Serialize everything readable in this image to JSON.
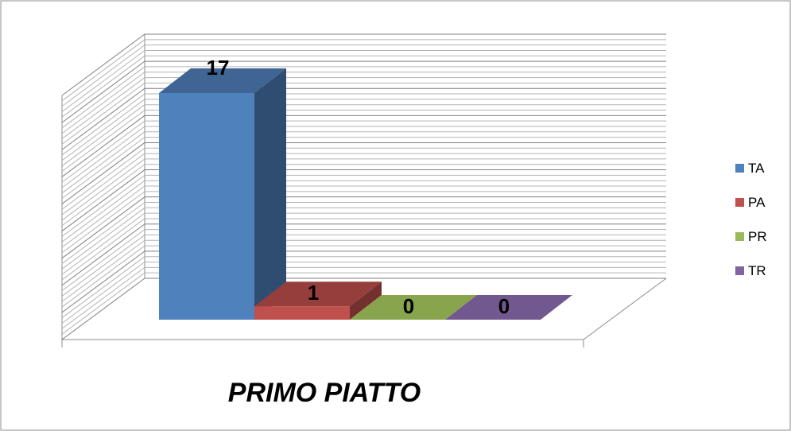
{
  "chart_data": {
    "type": "bar",
    "style": "3d-clustered",
    "categories": [
      "PRIMO PIATTO"
    ],
    "series": [
      {
        "name": "TA",
        "values": [
          17
        ],
        "color": "#4F81BD"
      },
      {
        "name": "PA",
        "values": [
          1
        ],
        "color": "#C0504D"
      },
      {
        "name": "PR",
        "values": [
          0
        ],
        "color": "#9BBB59"
      },
      {
        "name": "TR",
        "values": [
          0
        ],
        "color": "#8064A2"
      }
    ],
    "ylim": [
      0,
      18
    ],
    "grid": true,
    "legend_position": "right"
  }
}
